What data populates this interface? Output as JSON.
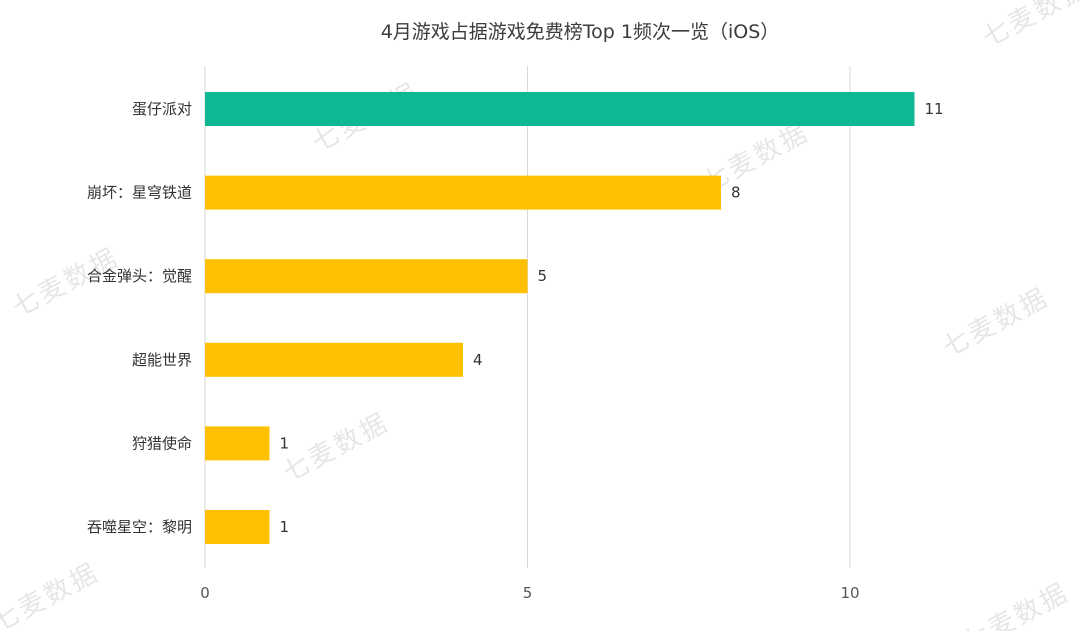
{
  "chart_data": {
    "type": "bar",
    "orientation": "horizontal",
    "title": "4月游戏占据游戏免费榜Top 1频次一览（iOS）",
    "categories": [
      "蛋仔派对",
      "崩坏：星穹铁道",
      "合金弹头：觉醒",
      "超能世界",
      "狩猎使命",
      "吞噬星空：黎明"
    ],
    "values": [
      11,
      8,
      5,
      4,
      1,
      1
    ],
    "bar_colors": [
      "#0db892",
      "#ffc000",
      "#ffc000",
      "#ffc000",
      "#ffc000",
      "#ffc000"
    ],
    "xlim": [
      0,
      11
    ],
    "xticks": [
      0,
      5,
      10
    ],
    "xlabel": "",
    "ylabel": "",
    "grid": true,
    "data_labels": true
  },
  "watermark": "七麦数据"
}
